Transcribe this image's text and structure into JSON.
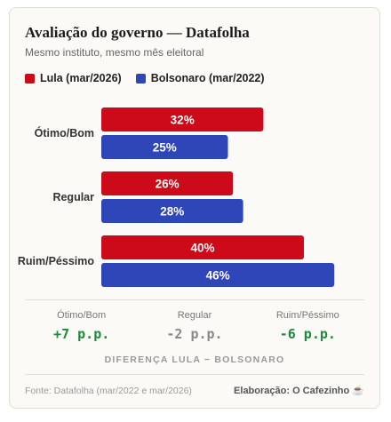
{
  "title": "Avaliação do governo — Datafolha",
  "subtitle": "Mesmo instituto, mesmo mês eleitoral",
  "colors": {
    "lula": "#cc0a1a",
    "bolsonaro": "#2f46b8",
    "positive": "#1e8a3c",
    "neutral": "#888888"
  },
  "chart_data": {
    "type": "bar",
    "orientation": "horizontal",
    "categories": [
      "Ótimo/Bom",
      "Regular",
      "Ruim/Péssimo"
    ],
    "series": [
      {
        "name": "Lula (mar/2026)",
        "values": [
          32,
          26,
          40
        ],
        "labels": [
          "32%",
          "26%",
          "40%"
        ]
      },
      {
        "name": "Bolsonaro (mar/2022)",
        "values": [
          25,
          28,
          46
        ],
        "labels": [
          "25%",
          "28%",
          "46%"
        ]
      }
    ],
    "xlim": [
      0,
      50
    ],
    "grid": false,
    "legend": "top-left"
  },
  "differences": {
    "items": [
      {
        "label": "Ótimo/Bom",
        "value": "+7 p.p.",
        "tone": "positive"
      },
      {
        "label": "Regular",
        "value": "-2 p.p.",
        "tone": "neutral"
      },
      {
        "label": "Ruim/Péssimo",
        "value": "-6 p.p.",
        "tone": "positive"
      }
    ],
    "caption": "DIFERENÇA LULA − BOLSONARO"
  },
  "footer": {
    "source": "Fonte: Datafolha (mar/2022 e mar/2026)",
    "credit": "Elaboração: O Cafezinho ☕"
  }
}
